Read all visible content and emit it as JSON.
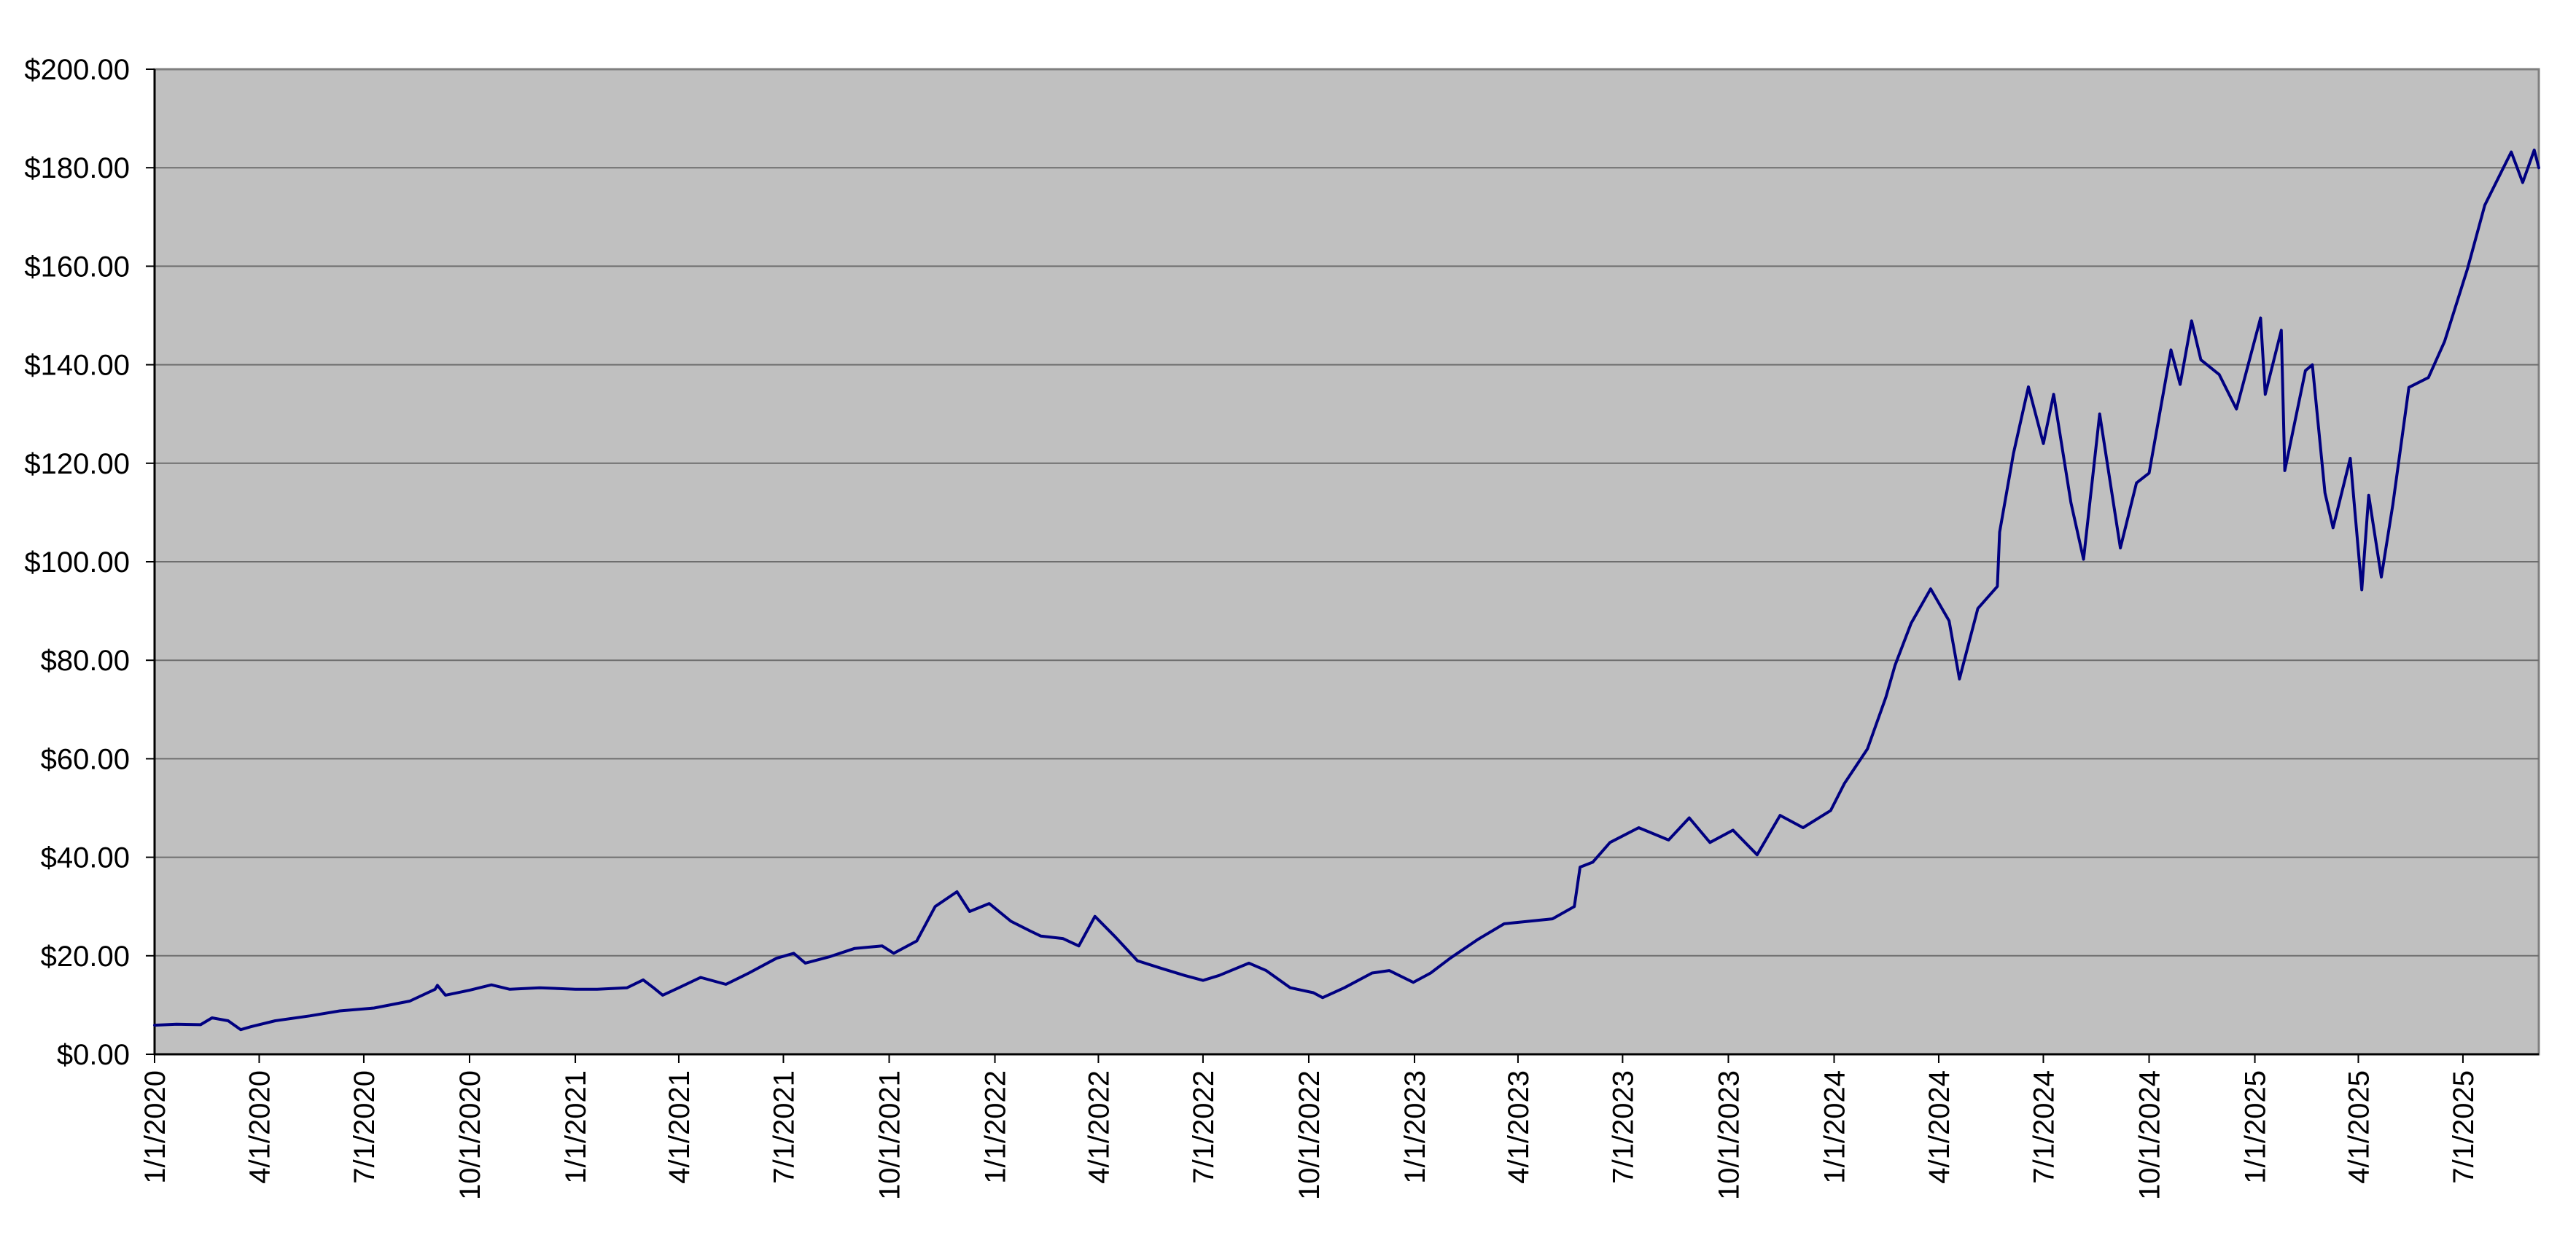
{
  "chart_data": {
    "type": "line",
    "title": "",
    "xlabel": "",
    "ylabel": "",
    "ylim": [
      0,
      200
    ],
    "xlim": [
      "2020-01-01",
      "2025-09-05"
    ],
    "grid": {
      "horizontal": true,
      "vertical": false
    },
    "legend": "none",
    "y_tick_labels": [
      "$0.00",
      "$20.00",
      "$40.00",
      "$60.00",
      "$80.00",
      "$100.00",
      "$120.00",
      "$140.00",
      "$160.00",
      "$180.00",
      "$200.00"
    ],
    "y_ticks": [
      0,
      20,
      40,
      60,
      80,
      100,
      120,
      140,
      160,
      180,
      200
    ],
    "x_tick_labels": [
      "1/1/2020",
      "4/1/2020",
      "7/1/2020",
      "10/1/2020",
      "1/1/2021",
      "4/1/2021",
      "7/1/2021",
      "10/1/2021",
      "1/1/2022",
      "4/1/2022",
      "7/1/2022",
      "10/1/2022",
      "1/1/2023",
      "4/1/2023",
      "7/1/2023",
      "10/1/2023",
      "1/1/2024",
      "4/1/2024",
      "7/1/2024",
      "10/1/2024",
      "1/1/2025",
      "4/1/2025",
      "7/1/2025"
    ],
    "x_ticks": [
      "2020-01-01",
      "2020-04-01",
      "2020-07-01",
      "2020-10-01",
      "2021-01-01",
      "2021-04-01",
      "2021-07-01",
      "2021-10-01",
      "2022-01-01",
      "2022-04-01",
      "2022-07-01",
      "2022-10-01",
      "2023-01-01",
      "2023-04-01",
      "2023-07-01",
      "2023-10-01",
      "2024-01-01",
      "2024-04-01",
      "2024-07-01",
      "2024-10-01",
      "2025-01-01",
      "2025-04-01",
      "2025-07-01"
    ],
    "series": [
      {
        "color": "#000080",
        "points": [
          [
            "2020-01-01",
            5.9
          ],
          [
            "2020-01-20",
            6.1
          ],
          [
            "2020-02-10",
            6.0
          ],
          [
            "2020-02-20",
            7.4
          ],
          [
            "2020-03-05",
            6.8
          ],
          [
            "2020-03-16",
            5.0
          ],
          [
            "2020-03-25",
            5.6
          ],
          [
            "2020-04-15",
            6.8
          ],
          [
            "2020-05-15",
            7.8
          ],
          [
            "2020-06-10",
            8.8
          ],
          [
            "2020-07-10",
            9.4
          ],
          [
            "2020-08-10",
            10.8
          ],
          [
            "2020-09-01",
            13.2
          ],
          [
            "2020-09-03",
            14.0
          ],
          [
            "2020-09-10",
            12.0
          ],
          [
            "2020-10-01",
            13.0
          ],
          [
            "2020-10-20",
            14.1
          ],
          [
            "2020-11-05",
            13.2
          ],
          [
            "2020-12-01",
            13.5
          ],
          [
            "2021-01-01",
            13.2
          ],
          [
            "2021-01-20",
            13.2
          ],
          [
            "2021-02-15",
            13.5
          ],
          [
            "2021-03-01",
            15.1
          ],
          [
            "2021-03-10",
            13.5
          ],
          [
            "2021-03-18",
            12.0
          ],
          [
            "2021-04-01",
            13.5
          ],
          [
            "2021-04-20",
            15.6
          ],
          [
            "2021-05-12",
            14.2
          ],
          [
            "2021-06-01",
            16.5
          ],
          [
            "2021-06-25",
            19.5
          ],
          [
            "2021-07-10",
            20.5
          ],
          [
            "2021-07-20",
            18.5
          ],
          [
            "2021-08-10",
            19.8
          ],
          [
            "2021-09-01",
            21.5
          ],
          [
            "2021-09-25",
            22.0
          ],
          [
            "2021-10-05",
            20.5
          ],
          [
            "2021-10-25",
            23.0
          ],
          [
            "2021-11-10",
            30.0
          ],
          [
            "2021-11-29",
            33.0
          ],
          [
            "2021-12-10",
            29.0
          ],
          [
            "2021-12-27",
            30.6
          ],
          [
            "2022-01-15",
            27.0
          ],
          [
            "2022-02-01",
            25.0
          ],
          [
            "2022-02-10",
            24.0
          ],
          [
            "2022-03-01",
            23.5
          ],
          [
            "2022-03-15",
            22.0
          ],
          [
            "2022-03-29",
            28.0
          ],
          [
            "2022-04-15",
            24.0
          ],
          [
            "2022-05-05",
            19.0
          ],
          [
            "2022-05-25",
            17.5
          ],
          [
            "2022-06-15",
            16.0
          ],
          [
            "2022-07-01",
            15.0
          ],
          [
            "2022-07-15",
            16.0
          ],
          [
            "2022-08-10",
            18.5
          ],
          [
            "2022-08-25",
            17.0
          ],
          [
            "2022-09-15",
            13.5
          ],
          [
            "2022-10-05",
            12.5
          ],
          [
            "2022-10-13",
            11.5
          ],
          [
            "2022-11-01",
            13.5
          ],
          [
            "2022-11-25",
            16.5
          ],
          [
            "2022-12-10",
            17.0
          ],
          [
            "2022-12-31",
            14.6
          ],
          [
            "2023-01-15",
            16.5
          ],
          [
            "2023-02-01",
            19.5
          ],
          [
            "2023-02-25",
            23.3
          ],
          [
            "2023-03-20",
            26.5
          ],
          [
            "2023-04-10",
            27.0
          ],
          [
            "2023-05-01",
            27.5
          ],
          [
            "2023-05-20",
            30.0
          ],
          [
            "2023-05-25",
            38.0
          ],
          [
            "2023-06-05",
            39.0
          ],
          [
            "2023-06-20",
            43.0
          ],
          [
            "2023-07-15",
            46.0
          ],
          [
            "2023-08-10",
            43.5
          ],
          [
            "2023-08-28",
            48.0
          ],
          [
            "2023-09-15",
            43.0
          ],
          [
            "2023-10-05",
            45.5
          ],
          [
            "2023-10-26",
            40.5
          ],
          [
            "2023-11-15",
            48.5
          ],
          [
            "2023-12-05",
            46.0
          ],
          [
            "2023-12-29",
            49.5
          ],
          [
            "2024-01-10",
            55.0
          ],
          [
            "2024-01-30",
            62.0
          ],
          [
            "2024-02-15",
            72.5
          ],
          [
            "2024-02-23",
            79.0
          ],
          [
            "2024-03-08",
            87.5
          ],
          [
            "2024-03-25",
            94.5
          ],
          [
            "2024-04-10",
            88.0
          ],
          [
            "2024-04-19",
            76.2
          ],
          [
            "2024-05-05",
            90.5
          ],
          [
            "2024-05-22",
            95.0
          ],
          [
            "2024-05-24",
            106.0
          ],
          [
            "2024-06-05",
            122.0
          ],
          [
            "2024-06-18",
            135.5
          ],
          [
            "2024-07-01",
            124.0
          ],
          [
            "2024-07-10",
            134.0
          ],
          [
            "2024-07-25",
            112.0
          ],
          [
            "2024-08-05",
            100.5
          ],
          [
            "2024-08-19",
            130.0
          ],
          [
            "2024-09-06",
            102.8
          ],
          [
            "2024-09-20",
            116.0
          ],
          [
            "2024-10-01",
            118.0
          ],
          [
            "2024-10-20",
            143.0
          ],
          [
            "2024-10-28",
            136.0
          ],
          [
            "2024-11-07",
            148.9
          ],
          [
            "2024-11-15",
            141.0
          ],
          [
            "2024-12-01",
            138.0
          ],
          [
            "2024-12-16",
            131.0
          ],
          [
            "2025-01-06",
            149.5
          ],
          [
            "2025-01-10",
            134.0
          ],
          [
            "2025-01-24",
            147.0
          ],
          [
            "2025-01-27",
            118.5
          ],
          [
            "2025-02-14",
            138.8
          ],
          [
            "2025-02-20",
            140.0
          ],
          [
            "2025-03-03",
            114.0
          ],
          [
            "2025-03-10",
            106.9
          ],
          [
            "2025-03-25",
            121.0
          ],
          [
            "2025-04-04",
            94.3
          ],
          [
            "2025-04-10",
            113.5
          ],
          [
            "2025-04-21",
            96.9
          ],
          [
            "2025-05-01",
            111.6
          ],
          [
            "2025-05-15",
            135.4
          ],
          [
            "2025-06-01",
            137.4
          ],
          [
            "2025-06-15",
            144.7
          ],
          [
            "2025-07-05",
            159.5
          ],
          [
            "2025-07-20",
            172.4
          ],
          [
            "2025-08-12",
            183.2
          ],
          [
            "2025-08-22",
            177.0
          ],
          [
            "2025-09-01",
            183.6
          ],
          [
            "2025-09-05",
            180.0
          ]
        ]
      }
    ]
  }
}
